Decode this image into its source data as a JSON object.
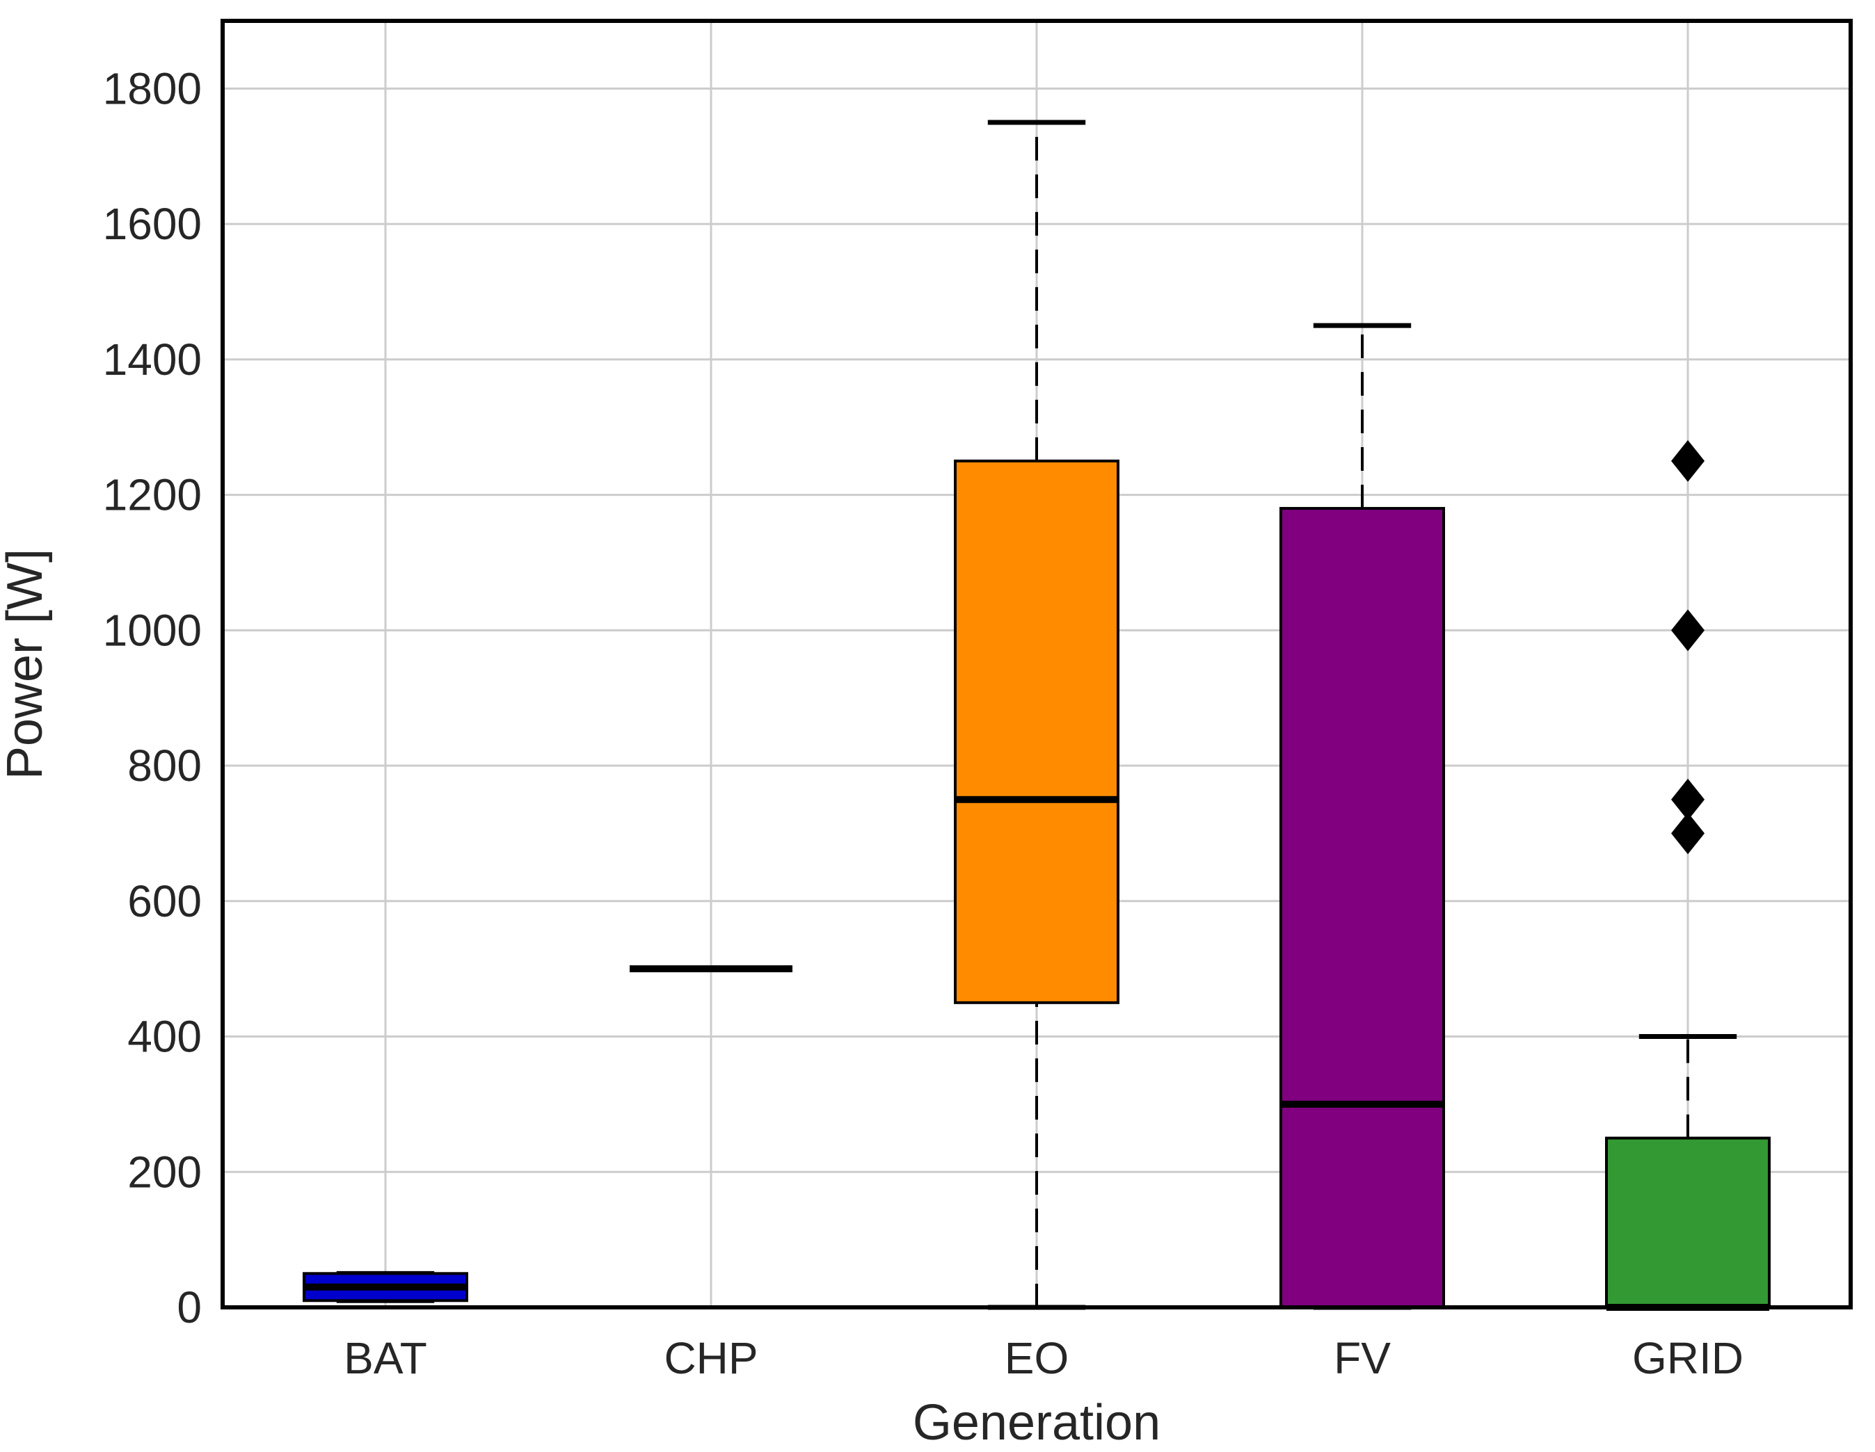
{
  "chart_data": {
    "type": "box",
    "xlabel": "Generation",
    "ylabel": "Power [W]",
    "ylim": [
      0,
      1900
    ],
    "yticks": [
      0,
      200,
      400,
      600,
      800,
      1000,
      1200,
      1400,
      1600,
      1800
    ],
    "grid": true,
    "categories": [
      "BAT",
      "CHP",
      "EO",
      "FV",
      "GRID"
    ],
    "boxes": [
      {
        "name": "BAT",
        "color": "#0000cc",
        "whisker_low": 10,
        "q1": 10,
        "median": 30,
        "q3": 50,
        "whisker_high": 50,
        "outliers": []
      },
      {
        "name": "CHP",
        "color": "#000000",
        "whisker_low": 500,
        "q1": 500,
        "median": 500,
        "q3": 500,
        "whisker_high": 500,
        "outliers": []
      },
      {
        "name": "EO",
        "color": "#ff8c00",
        "whisker_low": 0,
        "q1": 450,
        "median": 750,
        "q3": 1250,
        "whisker_high": 1750,
        "outliers": []
      },
      {
        "name": "FV",
        "color": "#800080",
        "whisker_low": 0,
        "q1": 0,
        "median": 300,
        "q3": 1180,
        "whisker_high": 1450,
        "outliers": []
      },
      {
        "name": "GRID",
        "color": "#339933",
        "whisker_low": 0,
        "q1": 0,
        "median": 0,
        "q3": 250,
        "whisker_high": 400,
        "outliers": [
          700,
          750,
          1000,
          1250
        ]
      }
    ]
  }
}
